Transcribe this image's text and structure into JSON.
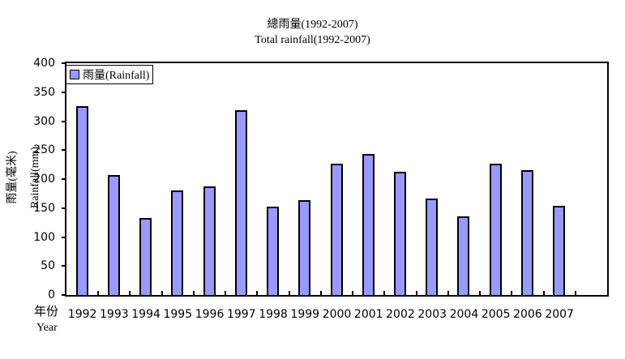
{
  "chart_data": {
    "type": "bar",
    "title": "總雨量(1992-2007)",
    "subtitle": "Total rainfall(1992-2007)",
    "xlabel": "年份 Year",
    "xlabel_zh": "年份",
    "xlabel_en": "Year",
    "ylabel": "雨量(毫米) Rainfall(mm)",
    "ylabel_zh": "雨量(毫米)",
    "ylabel_en": "Rainfall(mm)",
    "ylim": [
      0,
      400
    ],
    "yticks": [
      0,
      50,
      100,
      150,
      200,
      250,
      300,
      350,
      400
    ],
    "categories": [
      "1992",
      "1993",
      "1994",
      "1995",
      "1996",
      "1997",
      "1998",
      "1999",
      "2000",
      "2001",
      "2002",
      "2003",
      "2004",
      "2005",
      "2006",
      "2007"
    ],
    "series": [
      {
        "name": "雨量(Rainfall)",
        "color": "#9999ff",
        "values": [
          326,
          207,
          133,
          180,
          187,
          319,
          152,
          164,
          226,
          243,
          213,
          166,
          135,
          226,
          215,
          154
        ]
      }
    ],
    "legend_position": "top-left inside",
    "grid": false
  },
  "title": "總雨量(1992-2007)",
  "subtitle": "Total rainfall(1992-2007)",
  "legend_label": "雨量(Rainfall)",
  "ylabel_zh": "雨量(毫米)",
  "ylabel_en": "Rainfall(mm)",
  "xlabel_zh": "年份",
  "xlabel_en": "Year"
}
